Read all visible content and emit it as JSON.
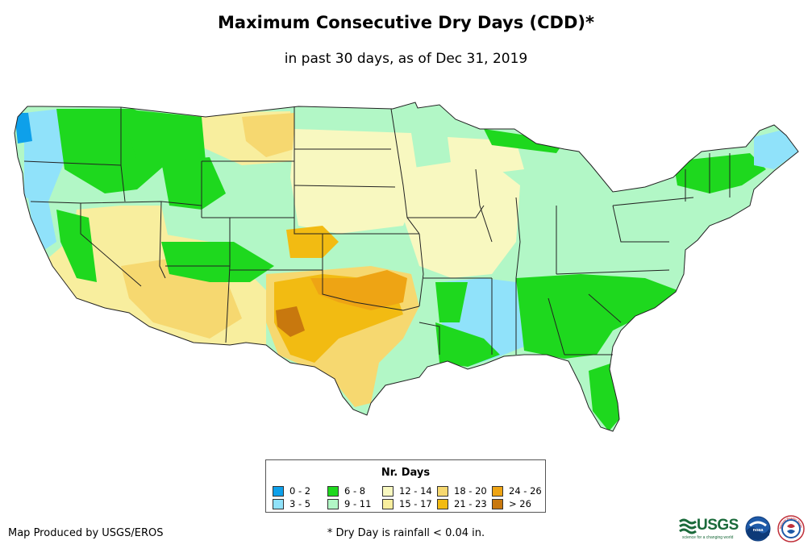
{
  "header": {
    "title": "Maximum Consecutive Dry Days (CDD)*",
    "subtitle": "in past 30 days, as of Dec 31, 2019"
  },
  "legend": {
    "title": "Nr. Days",
    "items": [
      {
        "label": "0 - 2",
        "color": "#0ea0ea"
      },
      {
        "label": "6 - 8",
        "color": "#1ed81e"
      },
      {
        "label": "12 - 14",
        "color": "#f8f8c0"
      },
      {
        "label": "18 - 20",
        "color": "#f6d870"
      },
      {
        "label": "24 - 26",
        "color": "#eea414"
      },
      {
        "label": "3 - 5",
        "color": "#90e2fa"
      },
      {
        "label": "9 - 11",
        "color": "#b2f7c6"
      },
      {
        "label": "15 - 17",
        "color": "#f8ee9e"
      },
      {
        "label": "21 - 23",
        "color": "#f2bb12"
      },
      {
        "label": "> 26",
        "color": "#c8780e"
      }
    ]
  },
  "footer": {
    "credit": "Map Produced by USGS/EROS",
    "footnote": "* Dry Day is rainfall < 0.04 in.",
    "logos": [
      "USGS",
      "science for a changing world",
      "noaa",
      "National Weather Service"
    ]
  },
  "colors": {
    "state_border": "#222222",
    "dry_0_2": "#0ea0ea",
    "dry_3_5": "#90e2fa",
    "dry_6_8": "#1ed81e",
    "dry_9_11": "#b2f7c6",
    "dry_12_14": "#f8f8c0",
    "dry_15_17": "#f8ee9e",
    "dry_18_20": "#f6d870",
    "dry_21_23": "#f2bb12",
    "dry_24_26": "#eea414",
    "dry_gt_26": "#c8780e"
  }
}
